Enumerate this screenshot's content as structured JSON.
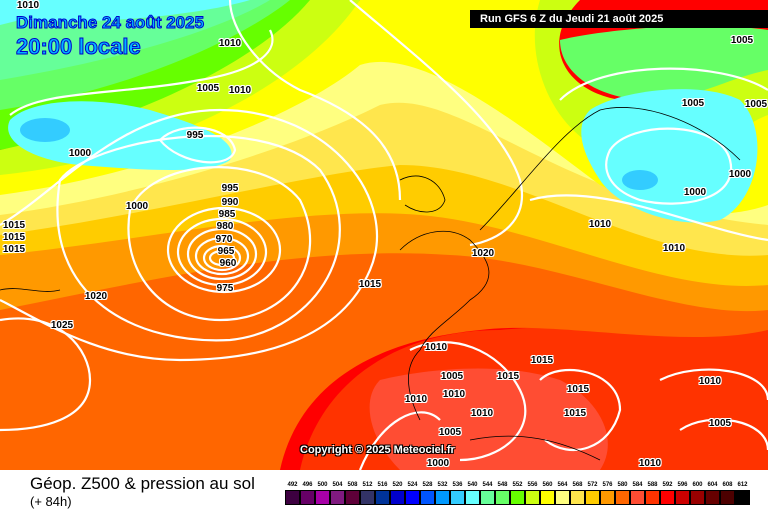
{
  "header": {
    "date": "Dimanche 24 août 2025",
    "time": "20:00 locale",
    "run": "Run GFS 6 Z du Jeudi 21 août 2025"
  },
  "copyright": "Copyright © 2025 Meteociel.fr",
  "footer": {
    "title": "Géop. Z500 & pression au sol",
    "lead": "(+ 84h)"
  },
  "legend": [
    {
      "v": "492",
      "c": "#3d0040"
    },
    {
      "v": "496",
      "c": "#660066"
    },
    {
      "v": "500",
      "c": "#a600a6"
    },
    {
      "v": "504",
      "c": "#801a80"
    },
    {
      "v": "508",
      "c": "#5e0039"
    },
    {
      "v": "512",
      "c": "#333366"
    },
    {
      "v": "516",
      "c": "#003399"
    },
    {
      "v": "520",
      "c": "#0000cc"
    },
    {
      "v": "524",
      "c": "#0000ff"
    },
    {
      "v": "528",
      "c": "#0055ff"
    },
    {
      "v": "532",
      "c": "#0099ff"
    },
    {
      "v": "536",
      "c": "#33ccff"
    },
    {
      "v": "540",
      "c": "#66ffff"
    },
    {
      "v": "544",
      "c": "#66ff99"
    },
    {
      "v": "548",
      "c": "#66ff66"
    },
    {
      "v": "552",
      "c": "#66ff00"
    },
    {
      "v": "556",
      "c": "#ccff11"
    },
    {
      "v": "560",
      "c": "#ffff00"
    },
    {
      "v": "564",
      "c": "#ffff80"
    },
    {
      "v": "568",
      "c": "#ffe64d"
    },
    {
      "v": "572",
      "c": "#ffcc00"
    },
    {
      "v": "576",
      "c": "#ff9900"
    },
    {
      "v": "580",
      "c": "#ff6600"
    },
    {
      "v": "584",
      "c": "#ff4d33"
    },
    {
      "v": "588",
      "c": "#ff3300"
    },
    {
      "v": "592",
      "c": "#ff0000"
    },
    {
      "v": "596",
      "c": "#cc0000"
    },
    {
      "v": "600",
      "c": "#990000"
    },
    {
      "v": "604",
      "c": "#660000"
    },
    {
      "v": "608",
      "c": "#4d0000"
    },
    {
      "v": "612",
      "c": "#000000"
    }
  ],
  "isobar_labels": [
    "1010",
    "1010",
    "1005",
    "1005",
    "1010",
    "1005",
    "1005",
    "995",
    "1000",
    "1000",
    "1000",
    "995",
    "1000",
    "990",
    "985",
    "980",
    "1010",
    "1015",
    "1015",
    "1015",
    "970",
    "965",
    "960",
    "1010",
    "1020",
    "975",
    "1015",
    "1020",
    "1025",
    "1010",
    "1005",
    "1015",
    "1015",
    "1015",
    "1010",
    "1010",
    "1010",
    "1010",
    "1015",
    "1005",
    "1005",
    "1000",
    "1010"
  ]
}
